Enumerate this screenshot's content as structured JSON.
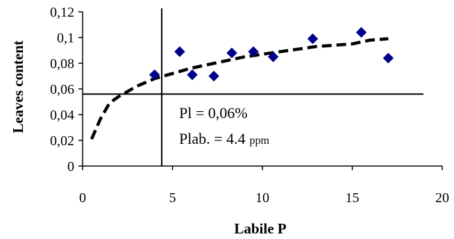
{
  "chart_data": {
    "type": "scatter",
    "xlabel": "Labile P",
    "ylabel": "Leaves content",
    "xlim": [
      0,
      20
    ],
    "ylim": [
      0,
      0.12
    ],
    "x_ticks": [
      0,
      5,
      10,
      15,
      20
    ],
    "y_ticks": [
      0,
      0.02,
      0.04,
      0.06,
      0.08,
      0.1,
      0.12
    ],
    "x_tick_labels": [
      "0",
      "5",
      "10",
      "15",
      "20"
    ],
    "y_tick_labels": [
      "0",
      "0,02",
      "0,04",
      "0,06",
      "0,08",
      "0,1",
      "0,12"
    ],
    "grid": false,
    "legend": "none",
    "marker_color": "#00008B",
    "series": [
      {
        "type": "scatter",
        "marker": "diamond",
        "x": [
          4.0,
          5.4,
          6.1,
          7.3,
          8.3,
          9.5,
          10.6,
          12.8,
          15.5,
          17.0
        ],
        "y": [
          0.071,
          0.089,
          0.071,
          0.07,
          0.088,
          0.089,
          0.085,
          0.099,
          0.104,
          0.084
        ]
      },
      {
        "type": "line",
        "style": "dashed",
        "x": [
          0.5,
          1.0,
          1.5,
          2.0,
          3.0,
          4.0,
          5.0,
          6.0,
          7.0,
          8.0,
          9.0,
          10.0,
          11.0,
          12.0,
          13.0,
          14.0,
          15.0,
          16.0,
          17.0
        ],
        "y": [
          0.021,
          0.037,
          0.049,
          0.054,
          0.062,
          0.068,
          0.072,
          0.076,
          0.079,
          0.082,
          0.085,
          0.087,
          0.089,
          0.091,
          0.093,
          0.094,
          0.095,
          0.098,
          0.099
        ]
      }
    ],
    "reference_lines": [
      {
        "orientation": "vertical",
        "value": 4.4
      },
      {
        "orientation": "horizontal",
        "value": 0.056
      }
    ],
    "annotations": [
      {
        "text": "Pl = 0,06%"
      },
      {
        "text": "Plab. = 4.4",
        "unit": "ppm"
      }
    ]
  }
}
